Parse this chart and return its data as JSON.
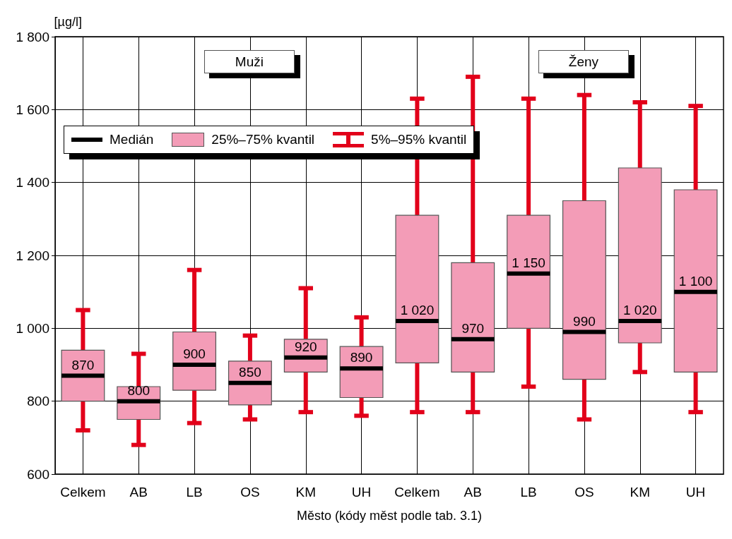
{
  "chart_data": {
    "type": "box",
    "ylabel": "[µg/l]",
    "xlabel": "Město (kódy měst podle tab. 3.1)",
    "categories": [
      "Celkem",
      "AB",
      "LB",
      "OS",
      "KM",
      "UH",
      "Celkem",
      "AB",
      "LB",
      "OS",
      "KM",
      "UH"
    ],
    "annotations": [
      "Muži",
      "Ženy",
      "Medián",
      "5%–95% kvantil"
    ],
    "series": [
      {
        "name": "25%–75% kvantil",
        "color": "#f39cb7",
        "value_labels": [
          "870",
          "800",
          "900",
          "850",
          "920",
          "890",
          "1 020",
          "970",
          "1 150",
          "990",
          "1 020",
          "1 100"
        ],
        "boxes": [
          {
            "low": 720,
            "q1": 800,
            "median": 870,
            "q3": 940,
            "high": 1050
          },
          {
            "low": 680,
            "q1": 750,
            "median": 800,
            "q3": 840,
            "high": 930
          },
          {
            "low": 740,
            "q1": 830,
            "median": 900,
            "q3": 990,
            "high": 1160
          },
          {
            "low": 750,
            "q1": 790,
            "median": 850,
            "q3": 910,
            "high": 980
          },
          {
            "low": 770,
            "q1": 880,
            "median": 920,
            "q3": 970,
            "high": 1110
          },
          {
            "low": 760,
            "q1": 810,
            "median": 890,
            "q3": 950,
            "high": 1030
          },
          {
            "low": 770,
            "q1": 905,
            "median": 1020,
            "q3": 1310,
            "high": 1630
          },
          {
            "low": 770,
            "q1": 880,
            "median": 970,
            "q3": 1180,
            "high": 1690
          },
          {
            "low": 840,
            "q1": 1000,
            "median": 1150,
            "q3": 1310,
            "high": 1630
          },
          {
            "low": 750,
            "q1": 860,
            "median": 990,
            "q3": 1350,
            "high": 1640
          },
          {
            "low": 880,
            "q1": 960,
            "median": 1020,
            "q3": 1440,
            "high": 1620
          },
          {
            "low": 770,
            "q1": 880,
            "median": 1100,
            "q3": 1380,
            "high": 1610
          }
        ]
      }
    ],
    "ylim": [
      600,
      1800
    ],
    "yticks": [
      {
        "value": 600,
        "label": "600"
      },
      {
        "value": 800,
        "label": "800"
      },
      {
        "value": 1000,
        "label": "1 000"
      },
      {
        "value": 1200,
        "label": "1 200"
      },
      {
        "value": 1400,
        "label": "1 400"
      },
      {
        "value": 1600,
        "label": "1 600"
      },
      {
        "value": 1800,
        "label": "1 800"
      }
    ],
    "grid": true,
    "legend": "top left"
  }
}
